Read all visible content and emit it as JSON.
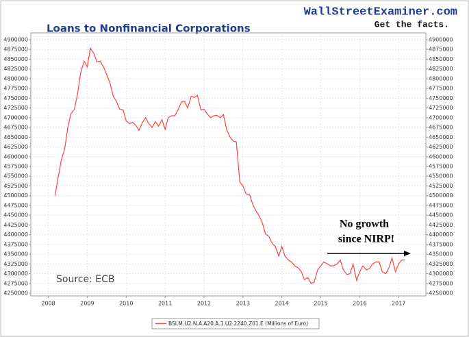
{
  "chart_data": {
    "type": "line",
    "title": "Loans to Nonfinancial Corporations",
    "brand": "WallStreetExaminer.com",
    "tagline": "Get the facts.",
    "source": "Source: ECB",
    "annotation": [
      "No growth",
      "since NIRP!"
    ],
    "x": [
      2008.17,
      2008.25,
      2008.33,
      2008.42,
      2008.5,
      2008.58,
      2008.67,
      2008.75,
      2008.83,
      2008.92,
      2009.0,
      2009.08,
      2009.17,
      2009.25,
      2009.33,
      2009.42,
      2009.5,
      2009.58,
      2009.67,
      2009.75,
      2009.83,
      2009.92,
      2010.0,
      2010.08,
      2010.17,
      2010.25,
      2010.33,
      2010.42,
      2010.5,
      2010.58,
      2010.67,
      2010.75,
      2010.83,
      2010.92,
      2011.0,
      2011.08,
      2011.17,
      2011.25,
      2011.33,
      2011.42,
      2011.5,
      2011.58,
      2011.67,
      2011.75,
      2011.83,
      2011.92,
      2012.0,
      2012.08,
      2012.17,
      2012.25,
      2012.33,
      2012.42,
      2012.5,
      2012.58,
      2012.67,
      2012.75,
      2012.83,
      2012.92,
      2013.0,
      2013.08,
      2013.17,
      2013.25,
      2013.33,
      2013.42,
      2013.5,
      2013.58,
      2013.67,
      2013.75,
      2013.83,
      2013.92,
      2014.0,
      2014.08,
      2014.17,
      2014.25,
      2014.33,
      2014.42,
      2014.5,
      2014.58,
      2014.67,
      2014.75,
      2014.83,
      2014.92,
      2015.0,
      2015.08,
      2015.17,
      2015.25,
      2015.33,
      2015.42,
      2015.5,
      2015.58,
      2015.67,
      2015.75,
      2015.83,
      2015.92,
      2016.0,
      2016.08,
      2016.17,
      2016.25,
      2016.33,
      2016.42,
      2016.5,
      2016.58,
      2016.67,
      2016.75,
      2016.83,
      2016.92,
      2017.0,
      2017.08,
      2017.17
    ],
    "series": [
      {
        "name": "BSI.M.U2.N.A.A20.A.1.U2.2240.Z01.E (Millions of Euro)",
        "color": "#ff4040",
        "values": [
          4500000,
          4545000,
          4590000,
          4620000,
          4675000,
          4710000,
          4722000,
          4760000,
          4815000,
          4845000,
          4830000,
          4878000,
          4865000,
          4843000,
          4845000,
          4830000,
          4810000,
          4790000,
          4755000,
          4742000,
          4722000,
          4720000,
          4692000,
          4685000,
          4688000,
          4680000,
          4668000,
          4688000,
          4700000,
          4685000,
          4675000,
          4690000,
          4678000,
          4695000,
          4670000,
          4700000,
          4705000,
          4705000,
          4720000,
          4740000,
          4742000,
          4725000,
          4755000,
          4752000,
          4757000,
          4720000,
          4722000,
          4710000,
          4700000,
          4705000,
          4706000,
          4700000,
          4708000,
          4670000,
          4650000,
          4640000,
          4638000,
          4535000,
          4525000,
          4505000,
          4503000,
          4478000,
          4462000,
          4448000,
          4430000,
          4402000,
          4395000,
          4378000,
          4370000,
          4345000,
          4370000,
          4345000,
          4335000,
          4330000,
          4320000,
          4315000,
          4305000,
          4285000,
          4290000,
          4275000,
          4278000,
          4310000,
          4320000,
          4330000,
          4325000,
          4320000,
          4320000,
          4325000,
          4335000,
          4310000,
          4298000,
          4300000,
          4325000,
          4283000,
          4305000,
          4320000,
          4310000,
          4313000,
          4325000,
          4330000,
          4330000,
          4305000,
          4300000,
          4315000,
          4340000,
          4305000,
          4325000,
          4335000,
          4335000
        ]
      }
    ],
    "xlim": [
      2007.55,
      2017.7
    ],
    "xticks": [
      2008,
      2009,
      2010,
      2011,
      2012,
      2013,
      2014,
      2015,
      2016,
      2017
    ],
    "ylim": [
      4243000,
      4917500
    ],
    "yticks": [
      4250000,
      4275000,
      4300000,
      4325000,
      4350000,
      4375000,
      4400000,
      4425000,
      4450000,
      4475000,
      4500000,
      4525000,
      4550000,
      4575000,
      4600000,
      4625000,
      4650000,
      4675000,
      4700000,
      4725000,
      4750000,
      4775000,
      4800000,
      4825000,
      4850000,
      4875000,
      4900000
    ],
    "grid": true
  }
}
